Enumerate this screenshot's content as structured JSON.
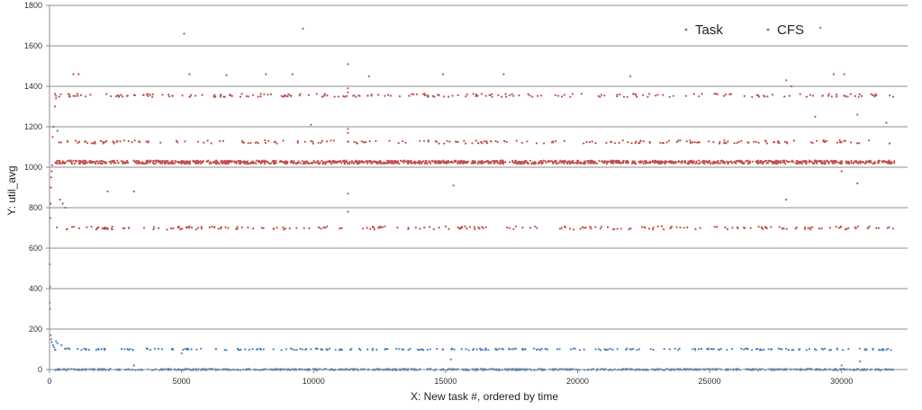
{
  "chart_data": {
    "type": "scatter",
    "title": "",
    "xlabel": "X: New task #, ordered by time",
    "ylabel": "Y: util_avg",
    "xlim": [
      0,
      32500
    ],
    "ylim": [
      0,
      1800
    ],
    "x_ticks": [
      0,
      5000,
      10000,
      15000,
      20000,
      25000,
      30000
    ],
    "y_ticks": [
      0,
      200,
      400,
      600,
      800,
      1000,
      1200,
      1400,
      1600,
      1800
    ],
    "grid": "horizontal",
    "legend_position": "top-right",
    "series": [
      {
        "name": "Task",
        "color": "#4f81bd",
        "bands": [
          {
            "x_range": [
              200,
              32000
            ],
            "y_center": 0,
            "spread": 3,
            "count": 900
          },
          {
            "x_range": [
              200,
              32000
            ],
            "y_center": 100,
            "spread": 4,
            "count": 260
          }
        ],
        "points": [
          {
            "x": 10,
            "y": 330
          },
          {
            "x": 20,
            "y": 300
          },
          {
            "x": 40,
            "y": 170
          },
          {
            "x": 60,
            "y": 150
          },
          {
            "x": 90,
            "y": 135
          },
          {
            "x": 130,
            "y": 120
          },
          {
            "x": 170,
            "y": 110
          },
          {
            "x": 250,
            "y": 140
          },
          {
            "x": 300,
            "y": 130
          },
          {
            "x": 450,
            "y": 120
          },
          {
            "x": 700,
            "y": 105
          },
          {
            "x": 3200,
            "y": 20
          },
          {
            "x": 15200,
            "y": 50
          },
          {
            "x": 30000,
            "y": 20
          },
          {
            "x": 30700,
            "y": 40
          },
          {
            "x": 5000,
            "y": 80
          }
        ]
      },
      {
        "name": "CFS",
        "color": "#c0504d",
        "bands": [
          {
            "x_range": [
              200,
              32000
            ],
            "y_center": 1025,
            "spread": 8,
            "count": 1400
          },
          {
            "x_range": [
              200,
              32000
            ],
            "y_center": 1355,
            "spread": 8,
            "count": 230
          },
          {
            "x_range": [
              200,
              32000
            ],
            "y_center": 1125,
            "spread": 8,
            "count": 220
          },
          {
            "x_range": [
              200,
              32000
            ],
            "y_center": 700,
            "spread": 8,
            "count": 230
          }
        ],
        "points": [
          {
            "x": 10,
            "y": 520
          },
          {
            "x": 20,
            "y": 410
          },
          {
            "x": 30,
            "y": 750
          },
          {
            "x": 40,
            "y": 820
          },
          {
            "x": 50,
            "y": 900
          },
          {
            "x": 60,
            "y": 950
          },
          {
            "x": 80,
            "y": 980
          },
          {
            "x": 100,
            "y": 1010
          },
          {
            "x": 120,
            "y": 1150
          },
          {
            "x": 150,
            "y": 1200
          },
          {
            "x": 200,
            "y": 1300
          },
          {
            "x": 250,
            "y": 1340
          },
          {
            "x": 300,
            "y": 1180
          },
          {
            "x": 400,
            "y": 840
          },
          {
            "x": 500,
            "y": 820
          },
          {
            "x": 600,
            "y": 800
          },
          {
            "x": 900,
            "y": 1460
          },
          {
            "x": 1100,
            "y": 1460
          },
          {
            "x": 2200,
            "y": 880
          },
          {
            "x": 3200,
            "y": 880
          },
          {
            "x": 5100,
            "y": 1660
          },
          {
            "x": 5300,
            "y": 1460
          },
          {
            "x": 6700,
            "y": 1455
          },
          {
            "x": 8200,
            "y": 1460
          },
          {
            "x": 9200,
            "y": 1460
          },
          {
            "x": 9600,
            "y": 1685
          },
          {
            "x": 9900,
            "y": 1210
          },
          {
            "x": 11300,
            "y": 1510
          },
          {
            "x": 11300,
            "y": 870
          },
          {
            "x": 12100,
            "y": 1450
          },
          {
            "x": 15300,
            "y": 910
          },
          {
            "x": 14900,
            "y": 1460
          },
          {
            "x": 17200,
            "y": 1460
          },
          {
            "x": 22000,
            "y": 1450
          },
          {
            "x": 27900,
            "y": 1430
          },
          {
            "x": 27900,
            "y": 840
          },
          {
            "x": 28100,
            "y": 1400
          },
          {
            "x": 29200,
            "y": 1690
          },
          {
            "x": 29000,
            "y": 1250
          },
          {
            "x": 29700,
            "y": 1460
          },
          {
            "x": 30100,
            "y": 1460
          },
          {
            "x": 30000,
            "y": 980
          },
          {
            "x": 30600,
            "y": 920
          },
          {
            "x": 30600,
            "y": 1260
          },
          {
            "x": 31700,
            "y": 1220
          },
          {
            "x": 11300,
            "y": 1390
          },
          {
            "x": 11300,
            "y": 1370
          },
          {
            "x": 11300,
            "y": 1190
          },
          {
            "x": 11300,
            "y": 1170
          },
          {
            "x": 11300,
            "y": 780
          }
        ]
      }
    ]
  }
}
